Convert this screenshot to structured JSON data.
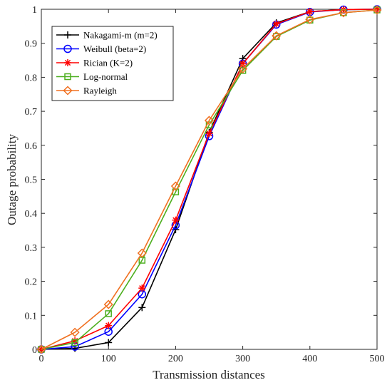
{
  "chart_data": {
    "type": "line",
    "title": "",
    "xlabel": "Transmission distances",
    "ylabel": "Outage probability",
    "xlim": [
      0,
      500
    ],
    "ylim": [
      0,
      1
    ],
    "xticks": [
      0,
      100,
      200,
      300,
      400,
      500
    ],
    "yticks": [
      0,
      0.1,
      0.2,
      0.3,
      0.4,
      0.5,
      0.6,
      0.7,
      0.8,
      0.9,
      1
    ],
    "grid": false,
    "legend_position": "top-left",
    "x": [
      0,
      50,
      100,
      150,
      200,
      250,
      300,
      350,
      400,
      450,
      500
    ],
    "series": [
      {
        "name": "Nakagami-m (m=2)",
        "color": "#000000",
        "marker": "plus",
        "values": [
          0,
          0.003,
          0.02,
          0.123,
          0.352,
          0.638,
          0.855,
          0.96,
          0.993,
          0.999,
          1.0
        ]
      },
      {
        "name": "Weibull (beta=2)",
        "color": "#0000ff",
        "marker": "circle",
        "values": [
          0,
          0.008,
          0.052,
          0.162,
          0.365,
          0.627,
          0.84,
          0.955,
          0.992,
          0.999,
          1.0
        ]
      },
      {
        "name": "Rician (K=2)",
        "color": "#ff0000",
        "marker": "asterisk",
        "values": [
          0,
          0.025,
          0.07,
          0.18,
          0.38,
          0.635,
          0.84,
          0.957,
          0.993,
          0.999,
          1.0
        ]
      },
      {
        "name": "Log-normal",
        "color": "#4daf1f",
        "marker": "square",
        "values": [
          0,
          0.02,
          0.105,
          0.262,
          0.463,
          0.66,
          0.82,
          0.92,
          0.968,
          0.99,
          0.998
        ]
      },
      {
        "name": "Rayleigh",
        "color": "#f07020",
        "marker": "diamond",
        "values": [
          0,
          0.05,
          0.132,
          0.283,
          0.48,
          0.673,
          0.825,
          0.922,
          0.97,
          0.99,
          0.998
        ]
      }
    ]
  }
}
